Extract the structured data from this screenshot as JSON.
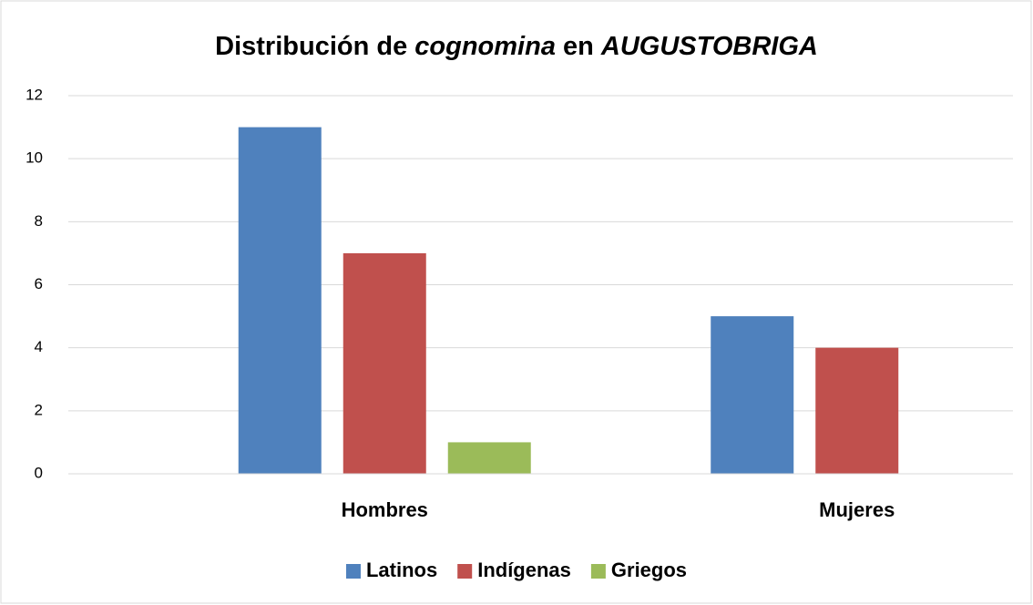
{
  "chart_data": {
    "type": "bar",
    "title": [
      {
        "text": "Distribución de ",
        "italic": false
      },
      {
        "text": "cognomina",
        "italic": true
      },
      {
        "text": " en ",
        "italic": false
      },
      {
        "text": "AUGUSTOBRIGA",
        "italic": true
      }
    ],
    "categories": [
      "Hombres",
      "Mujeres"
    ],
    "series": [
      {
        "name": "Latinos",
        "color": "#4f81bd",
        "values": [
          11,
          5
        ]
      },
      {
        "name": "Indígenas",
        "color": "#c0504d",
        "values": [
          7,
          4
        ]
      },
      {
        "name": "Griegos",
        "color": "#9bbb59",
        "values": [
          1,
          0
        ]
      }
    ],
    "ylim": [
      0,
      12
    ],
    "yticks": [
      0,
      2,
      4,
      6,
      8,
      10,
      12
    ],
    "grid": true,
    "legend": "bottom"
  }
}
